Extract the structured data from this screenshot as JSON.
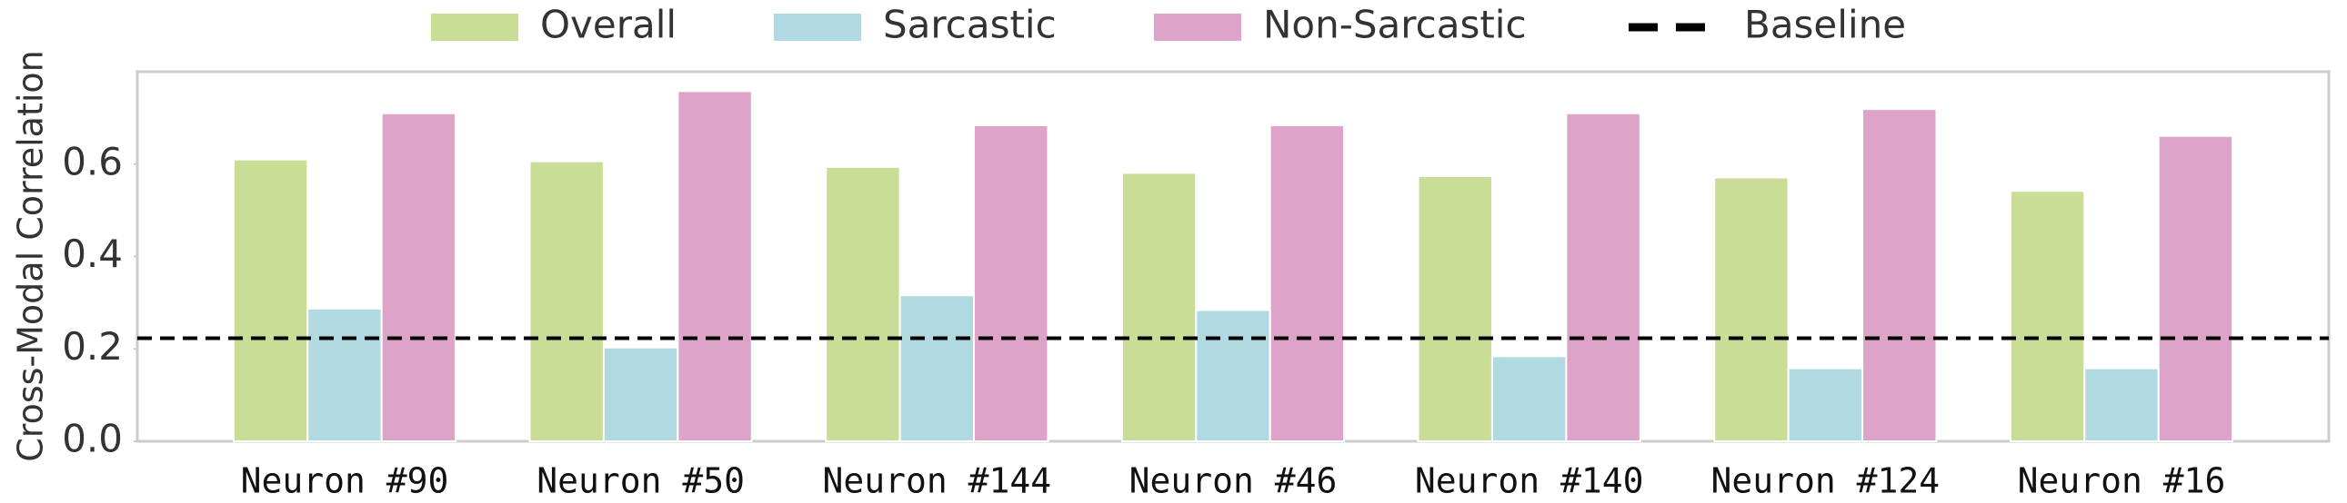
{
  "chart_data": {
    "type": "bar",
    "categories": [
      "Neuron #90",
      "Neuron #50",
      "Neuron #144",
      "Neuron #46",
      "Neuron #140",
      "Neuron #124",
      "Neuron #16"
    ],
    "series": [
      {
        "name": "Overall",
        "color": "#c9dd97",
        "values": [
          0.61,
          0.606,
          0.594,
          0.581,
          0.574,
          0.571,
          0.542
        ]
      },
      {
        "name": "Sarcastic",
        "color": "#b0d9e1",
        "values": [
          0.287,
          0.203,
          0.316,
          0.284,
          0.184,
          0.158,
          0.158
        ]
      },
      {
        "name": "Non-Sarcastic",
        "color": "#dea3c8",
        "values": [
          0.71,
          0.758,
          0.684,
          0.684,
          0.71,
          0.719,
          0.661
        ]
      }
    ],
    "baseline": {
      "name": "Baseline",
      "value": 0.223,
      "color": "#000000"
    },
    "ylabel": "Cross-Modal Correlation",
    "ylim": [
      0,
      0.8
    ],
    "yticks": [
      {
        "value": 0,
        "label": "0.0"
      },
      {
        "value": 0.2,
        "label": "0.2"
      },
      {
        "value": 0.4,
        "label": "0.4"
      },
      {
        "value": 0.6,
        "label": "0.6"
      }
    ],
    "grid": false,
    "legend": "top"
  }
}
